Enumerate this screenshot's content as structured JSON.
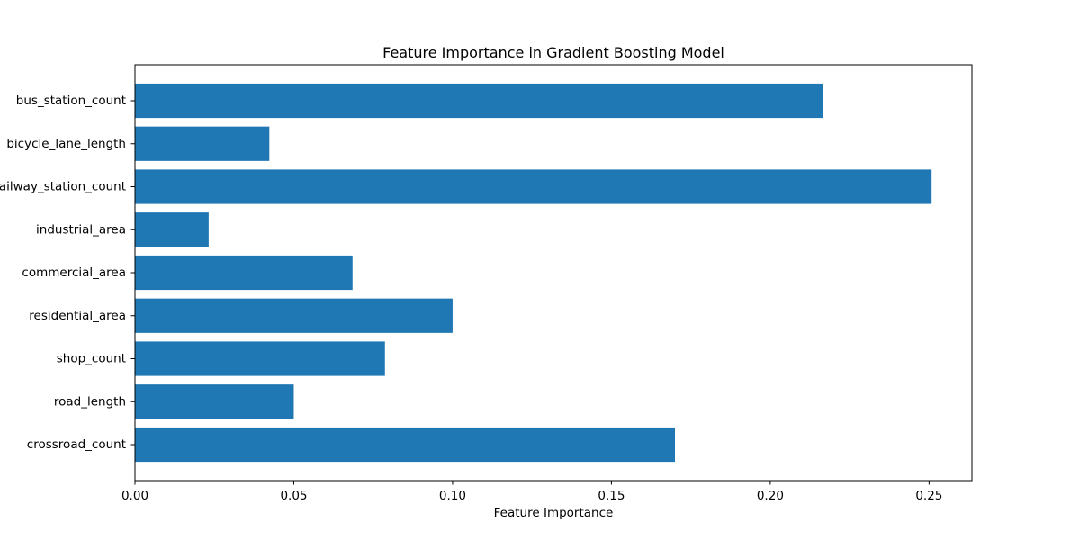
{
  "chart_data": {
    "type": "bar",
    "orientation": "horizontal",
    "title": "Feature Importance in Gradient Boosting Model",
    "xlabel": "Feature Importance",
    "ylabel": "",
    "categories": [
      "bus_station_count",
      "bicycle_lane_length",
      "railway_station_count",
      "industrial_area",
      "commercial_area",
      "residential_area",
      "shop_count",
      "road_length",
      "crossroad_count"
    ],
    "values": [
      0.2166,
      0.0423,
      0.2508,
      0.0232,
      0.0685,
      0.1,
      0.0787,
      0.05,
      0.17
    ],
    "xlim": [
      0.0,
      0.2635
    ],
    "xticks": [
      0.0,
      0.05,
      0.1,
      0.15,
      0.2,
      0.25
    ],
    "xtick_labels": [
      "0.00",
      "0.05",
      "0.10",
      "0.15",
      "0.20",
      "0.25"
    ],
    "bar_color": "#1f77b4",
    "grid": false,
    "legend": "none"
  }
}
